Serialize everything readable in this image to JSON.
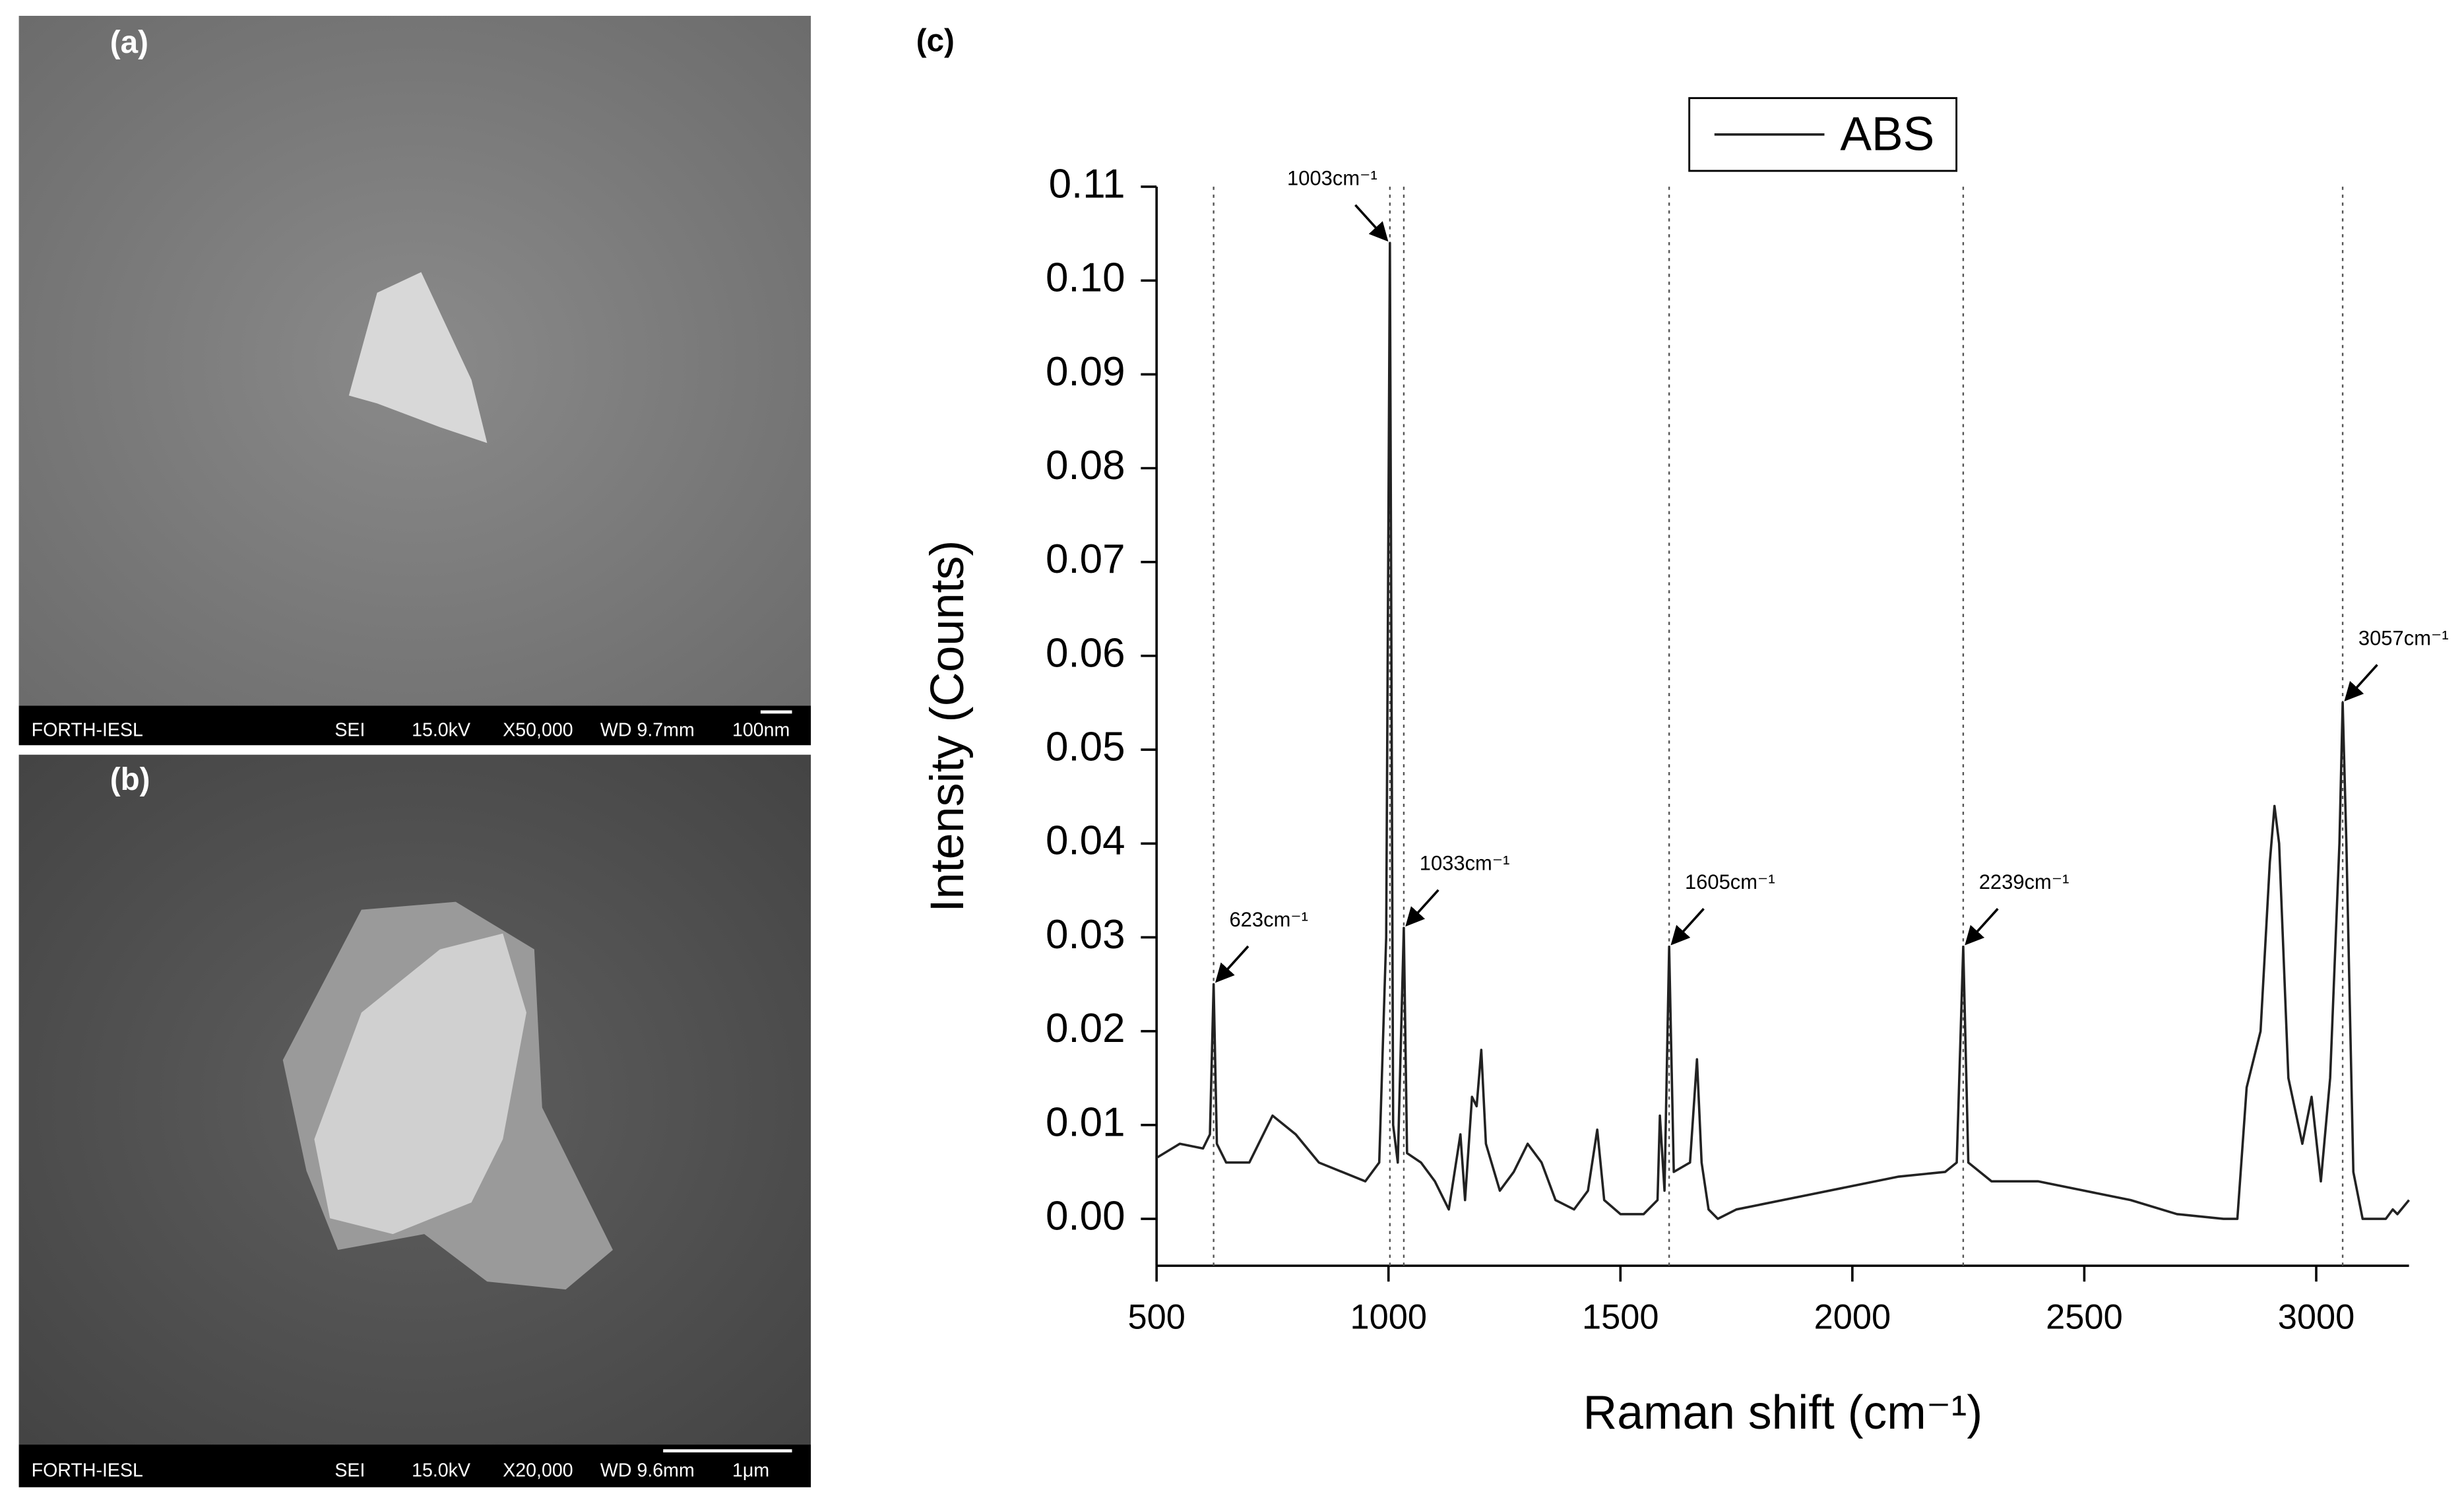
{
  "panels": [
    {
      "label": "(a)",
      "info": [
        "FORTH-IESL",
        "SEI",
        "15.0kV",
        "X50,000",
        "WD 9.7mm",
        "100nm"
      ]
    },
    {
      "label": "(b)",
      "info": [
        "FORTH-IESL",
        "SEI",
        "15.0kV",
        "X20,000",
        "WD 9.6mm",
        "1μm"
      ]
    }
  ],
  "chart_data": {
    "type": "line",
    "panel_label": "(c)",
    "xlabel": "Raman shift (cm⁻¹)",
    "ylabel": "Intensity (Counts)",
    "x": [
      500,
      550,
      600,
      615,
      623,
      630,
      650,
      700,
      750,
      800,
      850,
      900,
      950,
      980,
      995,
      1003,
      1010,
      1020,
      1033,
      1040,
      1070,
      1100,
      1130,
      1155,
      1165,
      1180,
      1190,
      1200,
      1210,
      1240,
      1270,
      1300,
      1330,
      1360,
      1400,
      1430,
      1450,
      1465,
      1500,
      1550,
      1580,
      1585,
      1595,
      1605,
      1615,
      1650,
      1665,
      1675,
      1690,
      1710,
      1750,
      1800,
      1900,
      2000,
      2100,
      2200,
      2225,
      2239,
      2250,
      2300,
      2400,
      2500,
      2600,
      2700,
      2800,
      2830,
      2850,
      2880,
      2900,
      2910,
      2920,
      2940,
      2970,
      2990,
      3010,
      3030,
      3050,
      3057,
      3065,
      3080,
      3100,
      3150,
      3165,
      3175,
      3200
    ],
    "series": [
      {
        "name": "ABS",
        "color": "#222222",
        "values": [
          0.0065,
          0.008,
          0.0075,
          0.009,
          0.025,
          0.008,
          0.006,
          0.006,
          0.011,
          0.009,
          0.006,
          0.005,
          0.004,
          0.006,
          0.03,
          0.104,
          0.01,
          0.006,
          0.031,
          0.007,
          0.006,
          0.004,
          0.001,
          0.009,
          0.002,
          0.013,
          0.012,
          0.018,
          0.008,
          0.003,
          0.005,
          0.008,
          0.006,
          0.002,
          0.001,
          0.003,
          0.0095,
          0.002,
          0.0005,
          0.0005,
          0.002,
          0.011,
          0.003,
          0.029,
          0.005,
          0.006,
          0.017,
          0.006,
          0.001,
          0,
          0.001,
          0.0015,
          0.0025,
          0.0035,
          0.0045,
          0.005,
          0.006,
          0.029,
          0.006,
          0.004,
          0.004,
          0.003,
          0.002,
          0.0005,
          0,
          0,
          0.014,
          0.02,
          0.038,
          0.044,
          0.04,
          0.015,
          0.008,
          0.013,
          0.004,
          0.015,
          0.04,
          0.055,
          0.04,
          0.005,
          0,
          0,
          0.001,
          0.0005,
          0.002
        ]
      }
    ],
    "xlim": [
      500,
      3200
    ],
    "ylim": [
      -0.005,
      0.11
    ],
    "xticks": [
      500,
      1000,
      1500,
      2000,
      2500,
      3000
    ],
    "yticks": [
      {
        "value": 0,
        "label": "0.00"
      },
      {
        "value": 0.01,
        "label": "0.01"
      },
      {
        "value": 0.02,
        "label": "0.02"
      },
      {
        "value": 0.03,
        "label": "0.03"
      },
      {
        "value": 0.04,
        "label": "0.04"
      },
      {
        "value": 0.05,
        "label": "0.05"
      },
      {
        "value": 0.06,
        "label": "0.06"
      },
      {
        "value": 0.07,
        "label": "0.07"
      },
      {
        "value": 0.08,
        "label": "0.08"
      },
      {
        "value": 0.09,
        "label": "0.09"
      },
      {
        "value": 0.1,
        "label": "0.10"
      },
      {
        "value": 0.11,
        "label": "0.11"
      }
    ],
    "legend": "top",
    "annotations": [
      {
        "text": "623cm⁻¹",
        "x": 623,
        "y": 0.025
      },
      {
        "text": "1003cm⁻¹",
        "x": 1003,
        "y": 0.104
      },
      {
        "text": "1033cm⁻¹",
        "x": 1033,
        "y": 0.031
      },
      {
        "text": "1605cm⁻¹",
        "x": 1605,
        "y": 0.029
      },
      {
        "text": "2239cm⁻¹",
        "x": 2239,
        "y": 0.029
      },
      {
        "text": "3057cm⁻¹",
        "x": 3057,
        "y": 0.055
      }
    ]
  }
}
